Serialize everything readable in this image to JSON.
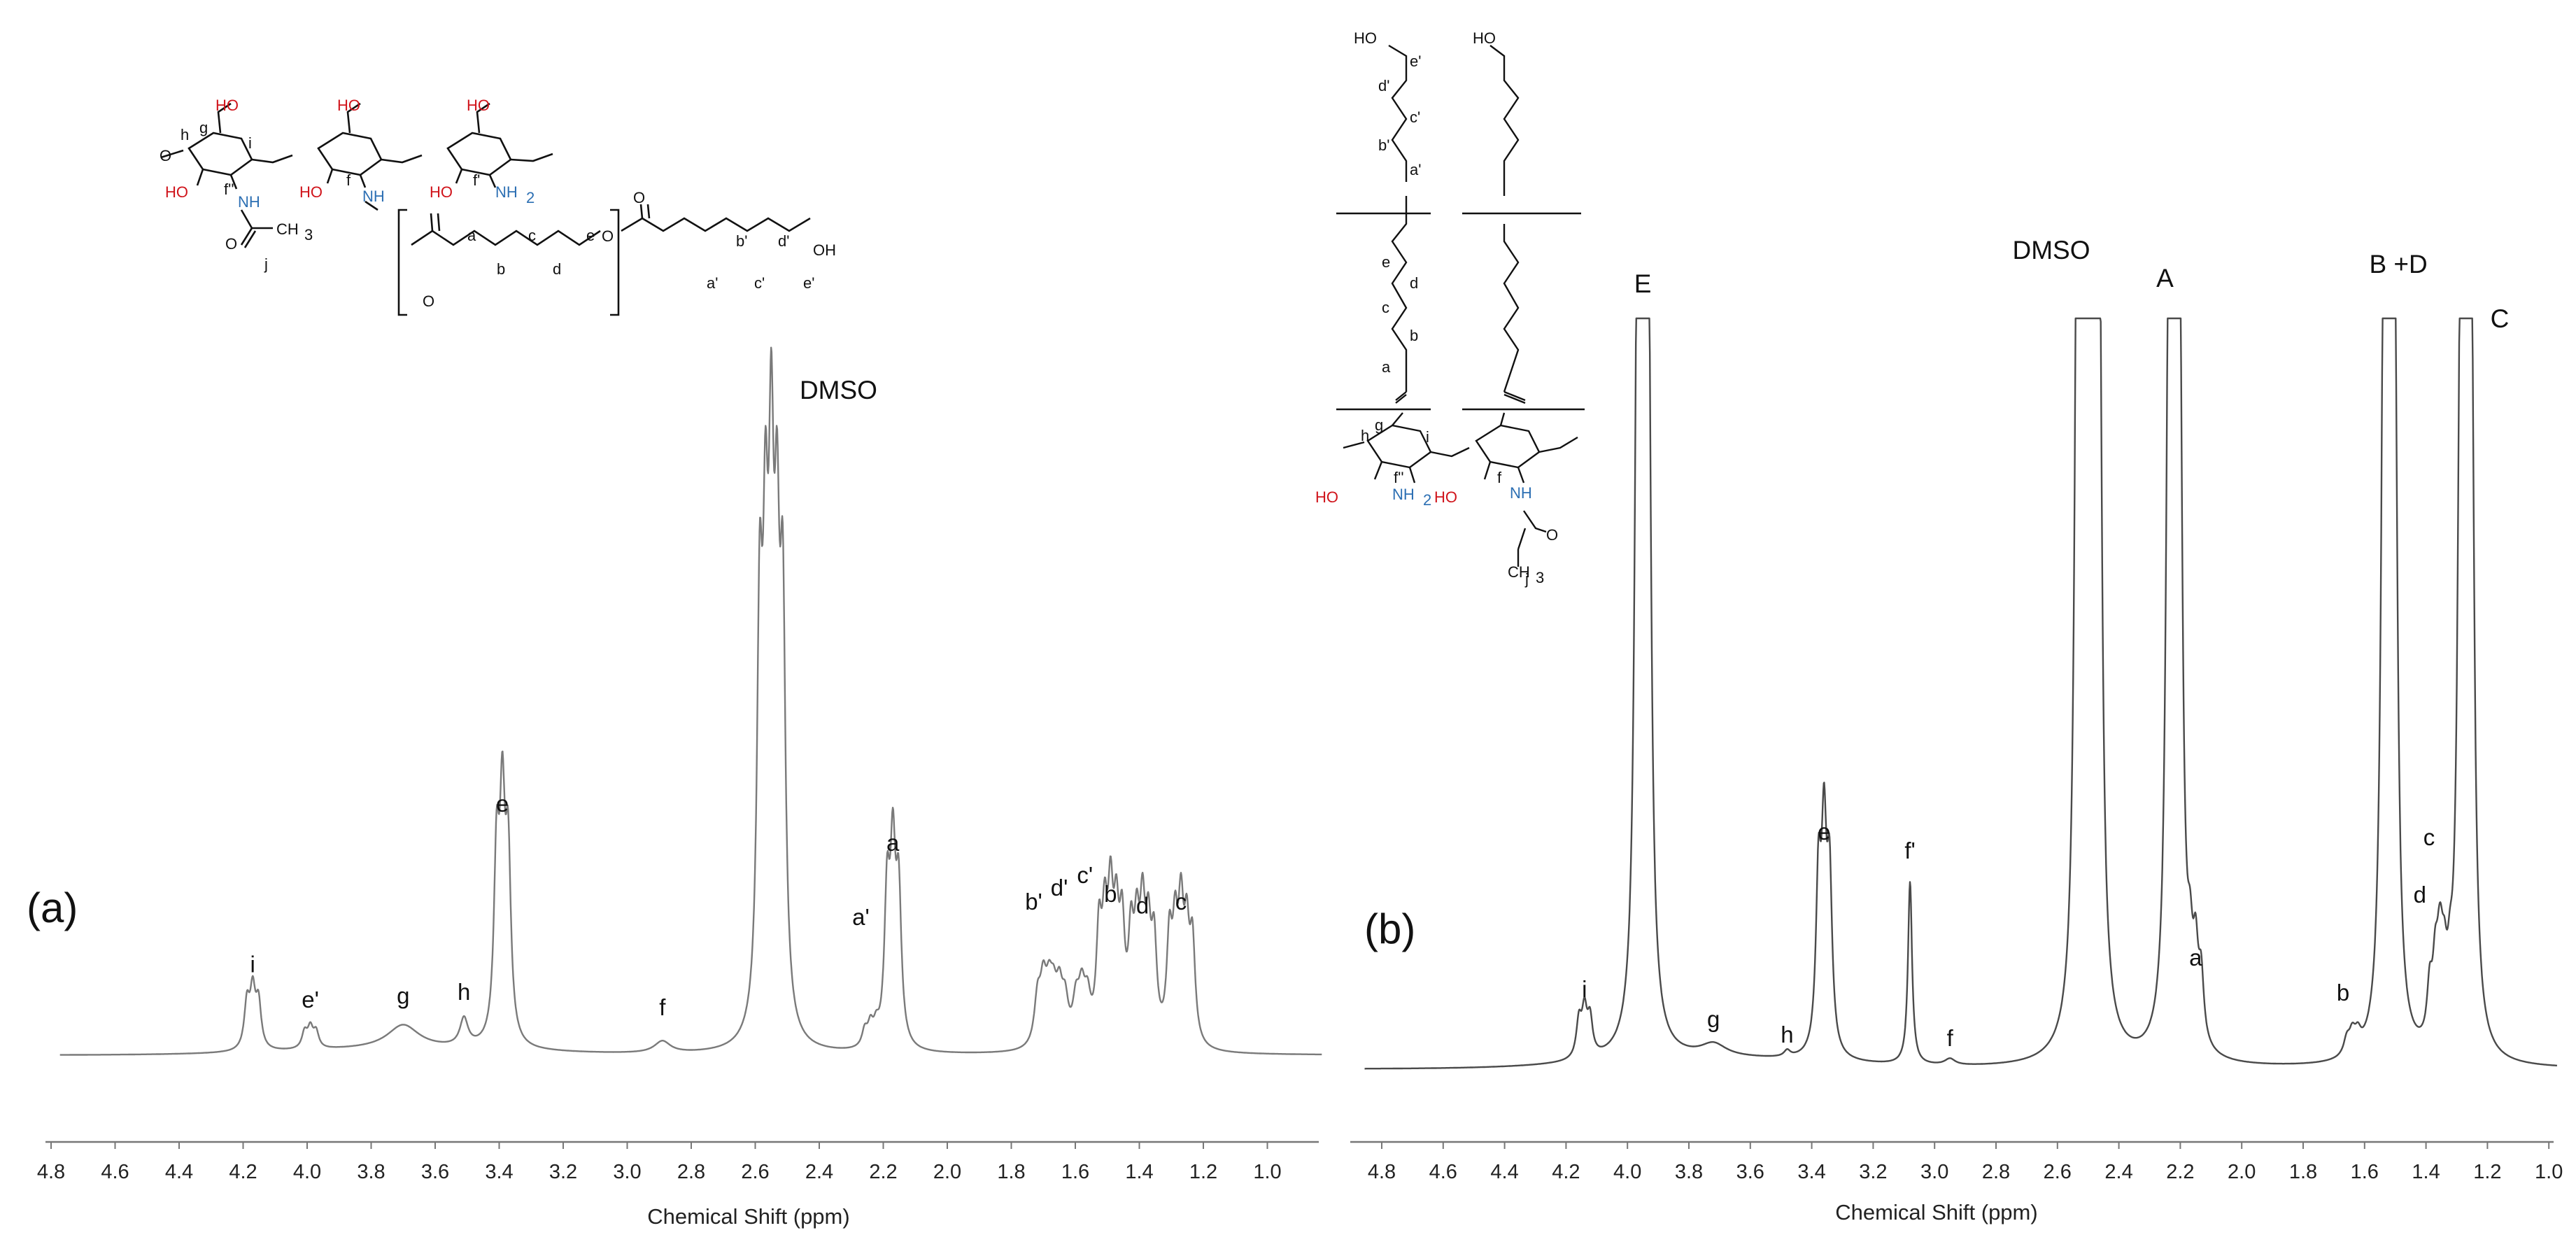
{
  "chart_data": [
    {
      "type": "line",
      "panel_label": "(a)",
      "xlabel": "Chemical Shift (ppm)",
      "xlim": [
        4.9,
        0.8
      ],
      "x_reversed": true,
      "tick_labels": [
        "4.8",
        "4.6",
        "4.4",
        "4.2",
        "4.0",
        "3.8",
        "3.6",
        "3.4",
        "3.2",
        "3.0",
        "2.8",
        "2.6",
        "2.4",
        "2.2",
        "2.0",
        "1.8",
        "1.6",
        "1.4",
        "1.2",
        "1.0"
      ],
      "ytick_labels": false,
      "grid": false,
      "line_color": "#7a7a7a",
      "series": [
        {
          "peaks": [
            {
              "ppm": 4.17,
              "height": 0.14,
              "width": 0.01,
              "label": "i",
              "mult": 3
            },
            {
              "ppm": 3.99,
              "height": 0.05,
              "width": 0.01,
              "label": "e'",
              "mult": 3
            },
            {
              "ppm": 3.7,
              "height": 0.06,
              "width": 0.06,
              "label": "g",
              "mult": 1
            },
            {
              "ppm": 3.51,
              "height": 0.07,
              "width": 0.015,
              "label": "h",
              "mult": 1
            },
            {
              "ppm": 3.39,
              "height": 0.55,
              "width": 0.01,
              "label": "e",
              "mult": 3
            },
            {
              "ppm": 2.89,
              "height": 0.03,
              "width": 0.03,
              "label": "f",
              "mult": 1
            },
            {
              "ppm": 2.55,
              "height": 1.2,
              "width": 0.01,
              "label": "DMSO",
              "mult": 5
            },
            {
              "ppm": 2.24,
              "height": 0.05,
              "width": 0.01,
              "label": "a'",
              "mult": 3
            },
            {
              "ppm": 2.17,
              "height": 0.45,
              "width": 0.01,
              "label": "a",
              "mult": 3
            },
            {
              "ppm": 1.7,
              "height": 0.14,
              "width": 0.012,
              "label": "b'",
              "mult": 3
            },
            {
              "ppm": 1.65,
              "height": 0.12,
              "width": 0.012,
              "label": "d'",
              "mult": 3
            },
            {
              "ppm": 1.58,
              "height": 0.12,
              "width": 0.012,
              "label": "c'",
              "mult": 3
            },
            {
              "ppm": 1.49,
              "height": 0.32,
              "width": 0.01,
              "label": "b",
              "mult": 5
            },
            {
              "ppm": 1.39,
              "height": 0.29,
              "width": 0.01,
              "label": "d",
              "mult": 5
            },
            {
              "ppm": 1.27,
              "height": 0.3,
              "width": 0.01,
              "label": "c",
              "mult": 5
            }
          ]
        }
      ]
    },
    {
      "type": "line",
      "panel_label": "(b)",
      "xlabel": "Chemical Shift (ppm)",
      "xlim": [
        4.9,
        0.8
      ],
      "x_reversed": true,
      "tick_labels": [
        "4.8",
        "4.6",
        "4.4",
        "4.2",
        "4.0",
        "3.8",
        "3.6",
        "3.4",
        "3.2",
        "3.0",
        "2.8",
        "2.6",
        "2.4",
        "2.2",
        "2.0",
        "1.8",
        "1.6",
        "1.4",
        "1.2",
        "1.0"
      ],
      "ytick_labels": false,
      "grid": false,
      "line_color": "#4a4a4a",
      "series": [
        {
          "peaks": [
            {
              "ppm": 4.14,
              "height": 0.07,
              "width": 0.01,
              "label": "i",
              "mult": 3
            },
            {
              "ppm": 3.95,
              "height": 1.3,
              "width": 0.01,
              "label": "E",
              "mult": 3
            },
            {
              "ppm": 3.72,
              "height": 0.02,
              "width": 0.05,
              "label": "g",
              "mult": 1
            },
            {
              "ppm": 3.48,
              "height": 0.01,
              "width": 0.012,
              "label": "h",
              "mult": 1
            },
            {
              "ppm": 3.36,
              "height": 0.32,
              "width": 0.01,
              "label": "e",
              "mult": 3
            },
            {
              "ppm": 3.08,
              "height": 0.29,
              "width": 0.008,
              "label": "f'",
              "mult": 1
            },
            {
              "ppm": 2.95,
              "height": 0.01,
              "width": 0.02,
              "label": "f",
              "mult": 1
            },
            {
              "ppm": 2.5,
              "height": 1.35,
              "width": 0.01,
              "label": "DMSO",
              "mult": 5
            },
            {
              "ppm": 2.22,
              "height": 1.25,
              "width": 0.01,
              "label": "A",
              "mult": 3
            },
            {
              "ppm": 2.15,
              "height": 0.12,
              "width": 0.01,
              "label": "a",
              "mult": 3
            },
            {
              "ppm": 1.64,
              "height": 0.03,
              "width": 0.012,
              "label": "b",
              "mult": 3
            },
            {
              "ppm": 1.52,
              "height": 1.25,
              "width": 0.01,
              "label": "B +D",
              "mult": 3
            },
            {
              "ppm": 1.37,
              "height": 0.1,
              "width": 0.01,
              "label": "d",
              "mult": 3
            },
            {
              "ppm": 1.27,
              "height": 1.22,
              "width": 0.01,
              "label": "C",
              "mult": 3
            },
            {
              "ppm": 1.34,
              "height": 0.08,
              "width": 0.01,
              "label": "c",
              "mult": 3
            }
          ]
        }
      ]
    }
  ],
  "structure_a": {
    "oh_label": "HO",
    "oh_label_right": "HO",
    "nh_label": "NH",
    "nh2_label": "NH",
    "nh2_subscript": "2",
    "o_label": "O",
    "ch3_label": "CH",
    "ch3_subscript": "3",
    "oh_end": "OH",
    "atom_labels": [
      "g",
      "h",
      "i",
      "f''",
      "f",
      "f'",
      "j",
      "a",
      "b",
      "c",
      "d",
      "e",
      "a'",
      "b'",
      "c'",
      "d'",
      "e'"
    ]
  },
  "structure_b": {
    "oh_label": "HO",
    "nh_label": "NH",
    "nh2_label": "NH",
    "nh2_subscript": "2",
    "o_label": "O",
    "ch3_label": "CH",
    "ch3_subscript": "3",
    "atom_labels": [
      "e'",
      "d'",
      "c'",
      "b'",
      "a'",
      "e",
      "d",
      "c",
      "b",
      "a",
      "g",
      "h",
      "i",
      "f''",
      "f",
      "j"
    ]
  }
}
